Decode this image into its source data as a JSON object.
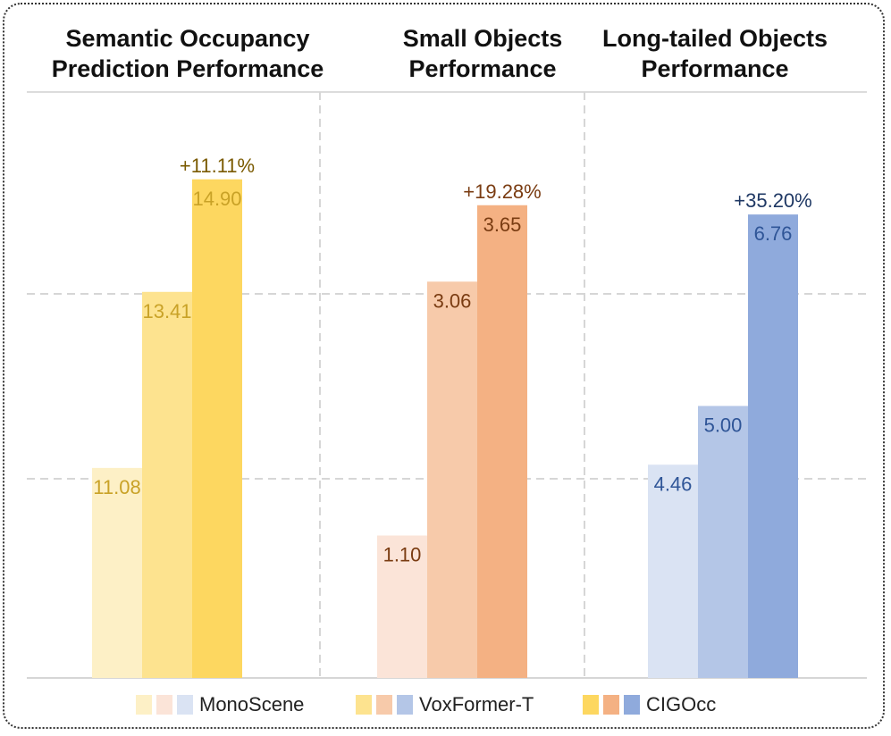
{
  "chart_data": {
    "type": "bar",
    "panels": [
      {
        "title": "Semantic Occupancy\nPrediction Performance",
        "values": [
          11.08,
          13.41,
          14.9
        ],
        "labels": [
          "11.08",
          "13.41",
          "14.90"
        ],
        "improvement": "+11.11%",
        "colors": [
          "#fdf0c6",
          "#fde38f",
          "#fdd760"
        ],
        "text_color": "#c9a227",
        "improvement_color": "#7a5a00",
        "ylim": [
          8.3,
          15.5
        ]
      },
      {
        "title": "Small Objects\nPerformance",
        "values": [
          1.1,
          3.06,
          3.65
        ],
        "labels": [
          "1.10",
          "3.06",
          "3.65"
        ],
        "improvement": "+19.28%",
        "colors": [
          "#fbe4d8",
          "#f7caaa",
          "#f4b183"
        ],
        "text_color": "#7a3c12",
        "improvement_color": "#7a3c12",
        "ylim": [
          0,
          4.2
        ]
      },
      {
        "title": "Long-tailed Objects\nPerformance",
        "values": [
          4.46,
          5.0,
          6.76
        ],
        "labels": [
          "4.46",
          "5.00",
          "6.76"
        ],
        "improvement": "+35.20%",
        "colors": [
          "#dae3f3",
          "#b4c6e7",
          "#8faadc"
        ],
        "text_color": "#2f5597",
        "improvement_color": "#1f3864",
        "ylim": [
          2.5,
          7.5
        ]
      }
    ],
    "legend": [
      "MonoScene",
      "VoxFormer-T",
      "CIGOcc"
    ]
  }
}
